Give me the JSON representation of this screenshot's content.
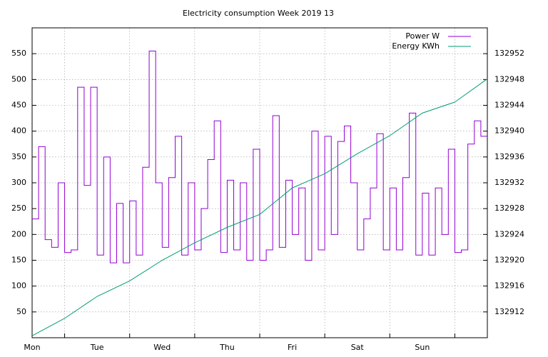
{
  "chart_data": {
    "type": "line",
    "title": "Electricity consumption Week 2019 13",
    "xlim": [
      0,
      7
    ],
    "xticks": [
      {
        "value": 0,
        "label": "Mon"
      },
      {
        "value": 1,
        "label": "Tue"
      },
      {
        "value": 2,
        "label": "Wed"
      },
      {
        "value": 3,
        "label": "Thu"
      },
      {
        "value": 4,
        "label": "Fri"
      },
      {
        "value": 5,
        "label": "Sat"
      },
      {
        "value": 6,
        "label": "Sun"
      }
    ],
    "xgrid": [
      0.5,
      1.5,
      2.5,
      3.5,
      4.5,
      5.5,
      6.5
    ],
    "ylim": [
      0,
      600
    ],
    "yticks": [
      50,
      100,
      150,
      200,
      250,
      300,
      350,
      400,
      450,
      500,
      550
    ],
    "y2lim": [
      132908,
      132956
    ],
    "y2ticks": [
      132912,
      132916,
      132920,
      132924,
      132928,
      132932,
      132936,
      132940,
      132944,
      132948,
      132952
    ],
    "grid": true,
    "legend": "top-right",
    "series": [
      {
        "name": "Power W",
        "color": "#9400d3",
        "step": true,
        "x": [
          0,
          0.1,
          0.2,
          0.3,
          0.4,
          0.5,
          0.6,
          0.7,
          0.8,
          0.9,
          1,
          1.1,
          1.2,
          1.3,
          1.4,
          1.5,
          1.6,
          1.7,
          1.8,
          1.9,
          2,
          2.1,
          2.2,
          2.3,
          2.4,
          2.5,
          2.6,
          2.7,
          2.8,
          2.9,
          3,
          3.1,
          3.2,
          3.3,
          3.4,
          3.5,
          3.6,
          3.7,
          3.8,
          3.9,
          4,
          4.1,
          4.2,
          4.3,
          4.4,
          4.5,
          4.6,
          4.7,
          4.8,
          4.9,
          5,
          5.1,
          5.2,
          5.3,
          5.4,
          5.5,
          5.6,
          5.7,
          5.8,
          5.9,
          6,
          6.1,
          6.2,
          6.3,
          6.4,
          6.5,
          6.6,
          6.7,
          6.8,
          6.9
        ],
        "values": [
          230,
          370,
          190,
          175,
          300,
          165,
          170,
          485,
          295,
          485,
          160,
          350,
          145,
          260,
          145,
          265,
          160,
          330,
          555,
          300,
          175,
          310,
          390,
          160,
          300,
          170,
          250,
          345,
          420,
          165,
          305,
          170,
          300,
          150,
          365,
          150,
          170,
          430,
          175,
          305,
          200,
          290,
          150,
          400,
          170,
          390,
          200,
          380,
          410,
          300,
          170,
          230,
          290,
          395,
          170,
          290,
          170,
          310,
          435,
          160,
          280,
          160,
          290,
          200,
          365,
          165,
          170,
          375,
          420,
          390
        ]
      },
      {
        "name": "Energy KWh",
        "color": "#009e73",
        "axis": "y2",
        "x": [
          0,
          0.5,
          1,
          1.5,
          2,
          2.5,
          3,
          3.5,
          4,
          4.5,
          5,
          5.5,
          6,
          6.5,
          7
        ],
        "values": [
          132908.3,
          132911,
          132914.4,
          132916.8,
          132920,
          132922.7,
          132925.1,
          132927.1,
          132931.2,
          132933.4,
          132936.5,
          132939.3,
          132942.8,
          132944.5,
          132948.1
        ]
      }
    ]
  }
}
